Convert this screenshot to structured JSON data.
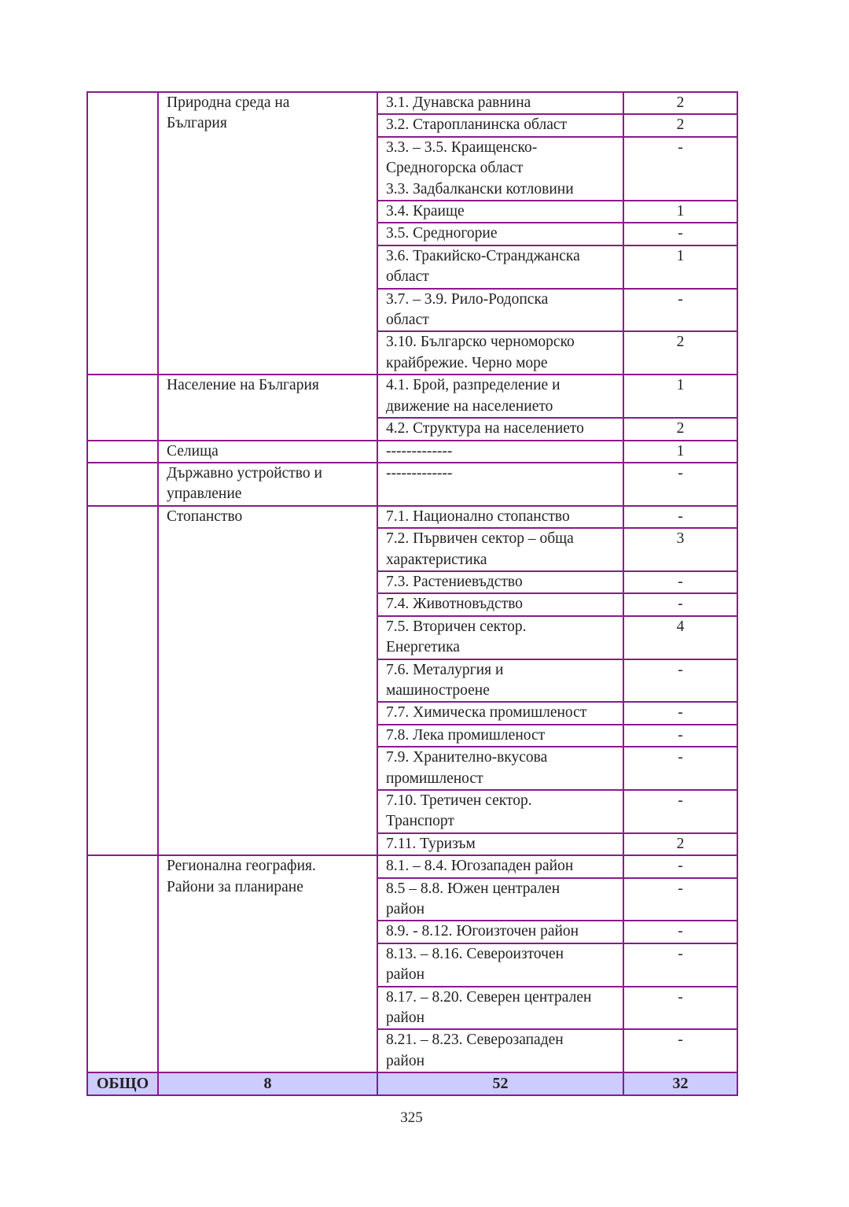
{
  "groups": [
    {
      "topic": "Природна среда  на\nБългария",
      "rows": [
        {
          "label": "3.1. Дунавска равнина",
          "count": "2"
        },
        {
          "label": "3.2. Старопланинска област",
          "count": "2"
        },
        {
          "label": "3.3. – 3.5. Краищенско-\nСредногорска област\n3.3. Задбалкански котловини",
          "count": "-"
        },
        {
          "label": "3.4. Краище",
          "count": "1"
        },
        {
          "label": "3.5. Средногорие",
          "count": "-"
        },
        {
          "label": "3.6. Тракийско-Странджанска\nобласт",
          "count": "1"
        },
        {
          "label": "3.7. – 3.9. Рило-Родопска\nобласт",
          "count": "-"
        },
        {
          "label": "3.10. Българско черноморско\nкрайбрежие. Черно море",
          "count": "2"
        }
      ]
    },
    {
      "topic": "Население на България",
      "rows": [
        {
          "label": "4.1. Брой, разпределение и\nдвижение на населението",
          "count": "1"
        },
        {
          "label": "4.2. Структура на населението",
          "count": "2"
        }
      ]
    },
    {
      "topic": "Селища",
      "rows": [
        {
          "label": "-------------",
          "count": "1"
        }
      ]
    },
    {
      "topic": "Държавно  устройство и\nуправление",
      "rows": [
        {
          "label": "-------------\n",
          "count": "-"
        }
      ]
    },
    {
      "topic": "Стопанство",
      "rows": [
        {
          "label": "7.1. Национално стопанство",
          "count": "-"
        },
        {
          "label": "7.2. Първичен сектор – обща\nхарактеристика",
          "count": "3"
        },
        {
          "label": "7.3. Растениевъдство",
          "count": "-"
        },
        {
          "label": "7.4. Животновъдство",
          "count": "-"
        },
        {
          "label": "7.5. Вторичен сектор.\nЕнергетика",
          "count": "4"
        },
        {
          "label": "7.6. Металургия и\nмашиностроене",
          "count": "-"
        },
        {
          "label": "7.7. Химическа промишленост",
          "count": "-"
        },
        {
          "label": "7.8. Лека промишленост",
          "count": "-"
        },
        {
          "label": "7.9. Хранително-вкусова\nпромишленост",
          "count": "-"
        },
        {
          "label": "7.10. Третичен сектор.\nТранспорт",
          "count": "-"
        },
        {
          "label": "7.11. Туризъм",
          "count": "2"
        }
      ]
    },
    {
      "topic": "Регионална география.\nРайони за планиране",
      "rows": [
        {
          "label": "8.1. – 8.4. Югозападен район",
          "count": "-"
        },
        {
          "label": "8.5 – 8.8. Южен централен\nрайон",
          "count": "-"
        },
        {
          "label": "8.9. - 8.12. Югоизточен район",
          "count": "-"
        },
        {
          "label": "8.13. – 8.16. Североизточен\nрайон",
          "count": "-"
        },
        {
          "label": "8.17. – 8.20. Северен централен\nрайон",
          "count": "-"
        },
        {
          "label": "8.21. – 8.23. Северозападен\nрайон",
          "count": "-"
        }
      ]
    }
  ],
  "total": {
    "label": "ОБЩО",
    "topics": "8",
    "lessons": "52",
    "hours": "32"
  },
  "page_number": "325",
  "colors": {
    "border": "#8b1a8b",
    "total_bg": "#ccccff"
  }
}
